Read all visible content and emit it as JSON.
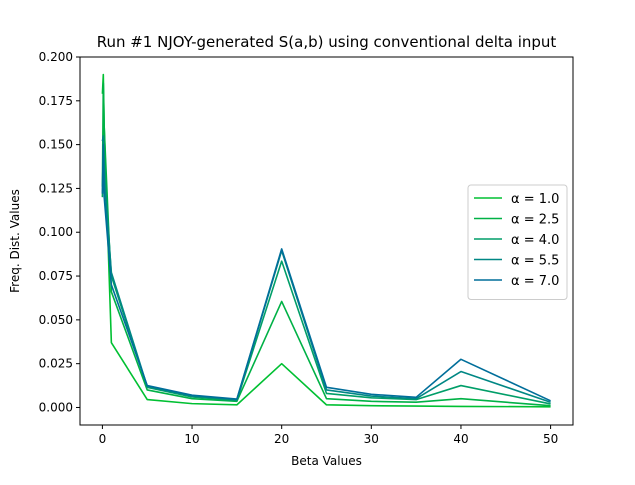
{
  "chart_data": {
    "type": "line",
    "title": "Run #1 NJOY-generated S(a,b) using conventional delta input",
    "xlabel": "Beta Values",
    "ylabel": "Freq. Dist. Values",
    "xlim": [
      -2.5,
      52.5
    ],
    "ylim": [
      -0.01,
      0.2
    ],
    "xticks": [
      0,
      10,
      20,
      30,
      40,
      50
    ],
    "yticks": [
      0.0,
      0.025,
      0.05,
      0.075,
      0.1,
      0.125,
      0.15,
      0.175,
      0.2
    ],
    "xtick_labels": [
      "0",
      "10",
      "20",
      "30",
      "40",
      "50"
    ],
    "ytick_labels": [
      "0.000",
      "0.025",
      "0.050",
      "0.075",
      "0.100",
      "0.125",
      "0.150",
      "0.175",
      "0.200"
    ],
    "grid": false,
    "legend_position": "center-right",
    "x": [
      0,
      0.1,
      0.2,
      1,
      5,
      10,
      15,
      20,
      25,
      30,
      35,
      40,
      50
    ],
    "series": [
      {
        "name": "α = 1.0",
        "color": "#00c032",
        "values": [
          0.179,
          0.19,
          0.16,
          0.037,
          0.0045,
          0.0022,
          0.0015,
          0.025,
          0.0015,
          0.001,
          0.0008,
          0.0006,
          0.0004
        ]
      },
      {
        "name": "α = 2.5",
        "color": "#00b146",
        "values": [
          0.126,
          0.185,
          0.16,
          0.066,
          0.01,
          0.005,
          0.0035,
          0.0605,
          0.005,
          0.0035,
          0.003,
          0.005,
          0.001
        ]
      },
      {
        "name": "α = 4.0",
        "color": "#009e68",
        "values": [
          0.12,
          0.155,
          0.14,
          0.075,
          0.0115,
          0.006,
          0.004,
          0.0835,
          0.008,
          0.0055,
          0.0045,
          0.0125,
          0.002
        ]
      },
      {
        "name": "α = 5.5",
        "color": "#008784",
        "values": [
          0.152,
          0.155,
          0.13,
          0.077,
          0.012,
          0.0065,
          0.0045,
          0.0895,
          0.01,
          0.0065,
          0.005,
          0.0205,
          0.003
        ]
      },
      {
        "name": "α = 7.0",
        "color": "#006e9a",
        "values": [
          0.122,
          0.15,
          0.12,
          0.07,
          0.0125,
          0.007,
          0.0048,
          0.0905,
          0.0115,
          0.0075,
          0.0058,
          0.0275,
          0.0038
        ]
      }
    ]
  }
}
